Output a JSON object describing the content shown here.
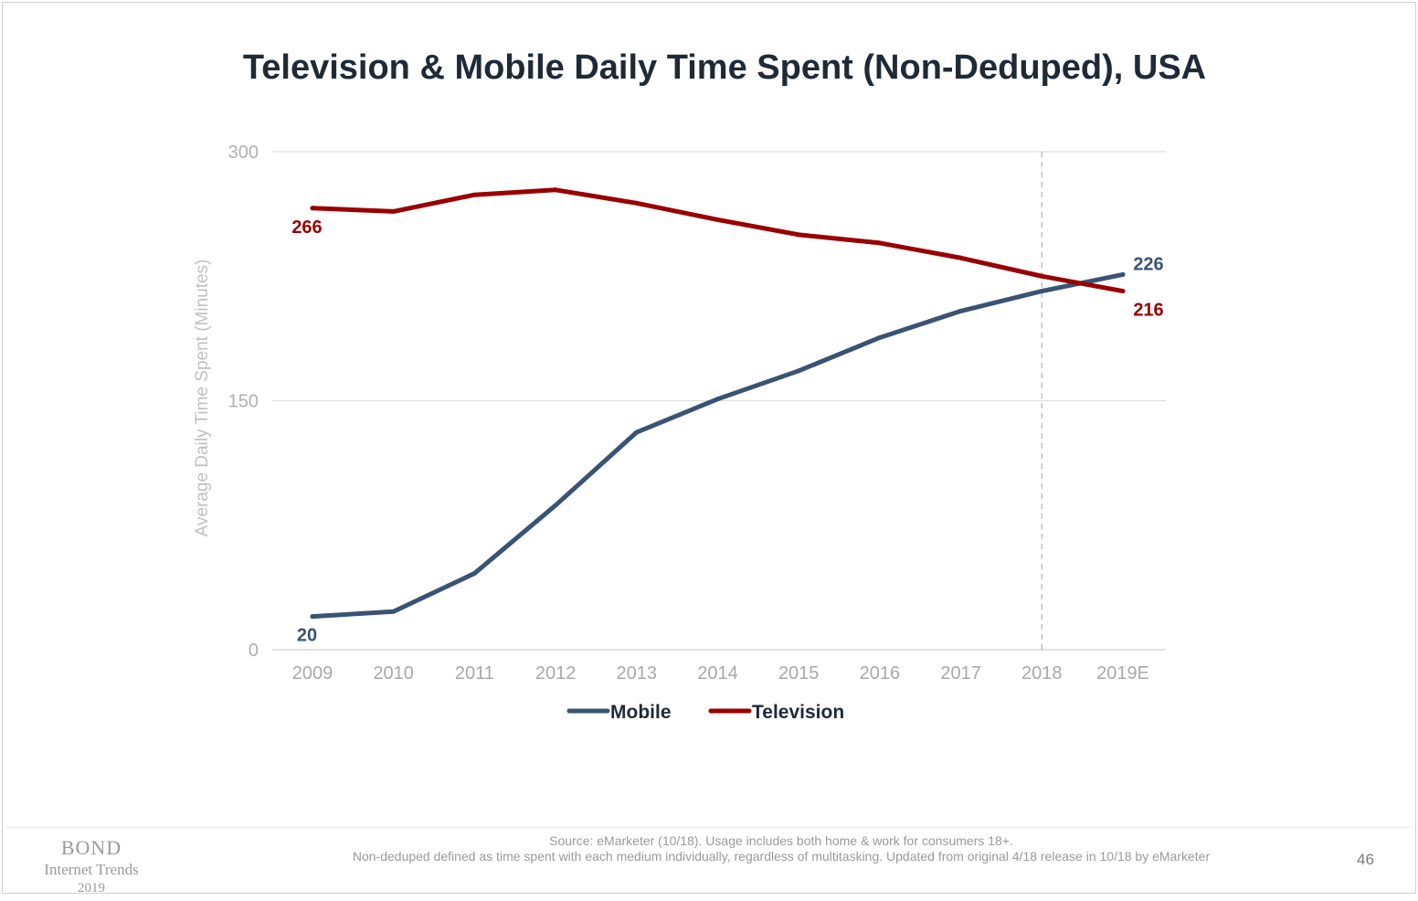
{
  "title": "Television & Mobile Daily Time Spent (Non-Deduped), USA",
  "chart_data": {
    "type": "line",
    "title": "Television & Mobile Daily Time Spent (Non-Deduped), USA",
    "xlabel": "",
    "ylabel": "Average Daily Time Spent (Minutes)",
    "categories": [
      "2009",
      "2010",
      "2011",
      "2012",
      "2013",
      "2014",
      "2015",
      "2016",
      "2017",
      "2018",
      "2019E"
    ],
    "ylim": [
      0,
      300
    ],
    "yticks": [
      "0",
      "150",
      "300"
    ],
    "grid": true,
    "forecast_divider_after": "2018",
    "legend_position": "bottom-center",
    "series": [
      {
        "name": "Mobile",
        "color": "#3a5373",
        "values": [
          20,
          23,
          46,
          87,
          131,
          151,
          168,
          188,
          204,
          216,
          226
        ],
        "labels": [
          {
            "index": 0,
            "text": "20",
            "placement": "below"
          },
          {
            "index": 10,
            "text": "226",
            "placement": "above"
          }
        ]
      },
      {
        "name": "Television",
        "color": "#990000",
        "values": [
          266,
          264,
          274,
          277,
          269,
          259,
          250,
          245,
          236,
          225,
          216
        ],
        "labels": [
          {
            "index": 0,
            "text": "266",
            "placement": "below"
          },
          {
            "index": 10,
            "text": "216",
            "placement": "below"
          }
        ]
      }
    ]
  },
  "footer": {
    "brand_line1": "BOND",
    "brand_line2": "Internet Trends",
    "brand_line3": "2019",
    "source_line1": "Source: eMarketer (10/18). Usage includes both home & work for consumers 18+.",
    "source_line2": "Non-deduped defined as time spent with each medium individually, regardless of multitasking. Updated from original 4/18 release in 10/18 by eMarketer",
    "page_number": "46"
  }
}
